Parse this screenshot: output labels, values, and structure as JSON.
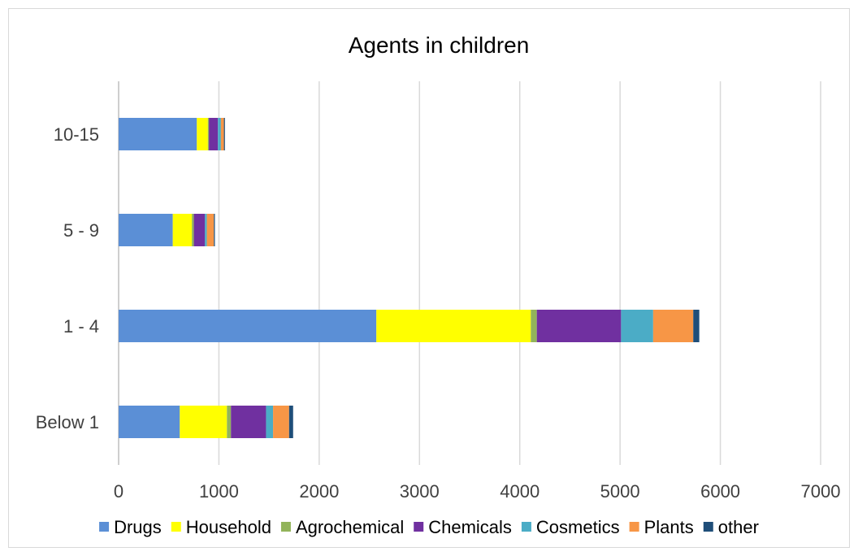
{
  "chart_data": {
    "type": "bar",
    "orientation": "horizontal",
    "stacked": true,
    "title": "Agents in children",
    "categories": [
      "Below 1",
      "1 - 4",
      "5 - 9",
      "10-15"
    ],
    "xlim": [
      0,
      7000
    ],
    "xticks": [
      0,
      1000,
      2000,
      3000,
      4000,
      5000,
      6000,
      7000
    ],
    "grid": true,
    "legend_position": "bottom",
    "series": [
      {
        "name": "Drugs",
        "color": "#5b8fd6",
        "values": [
          610,
          2570,
          540,
          780
        ]
      },
      {
        "name": "Household",
        "color": "#ffff00",
        "values": [
          470,
          1540,
          190,
          110
        ]
      },
      {
        "name": "Agrochemical",
        "color": "#92b45a",
        "values": [
          40,
          60,
          20,
          10
        ]
      },
      {
        "name": "Chemicals",
        "color": "#7030a0",
        "values": [
          350,
          840,
          110,
          90
        ]
      },
      {
        "name": "Cosmetics",
        "color": "#4bacc6",
        "values": [
          70,
          320,
          20,
          30
        ]
      },
      {
        "name": "Plants",
        "color": "#f79646",
        "values": [
          160,
          400,
          70,
          30
        ]
      },
      {
        "name": "other",
        "color": "#1f4e79",
        "values": [
          40,
          60,
          10,
          10
        ]
      }
    ]
  }
}
